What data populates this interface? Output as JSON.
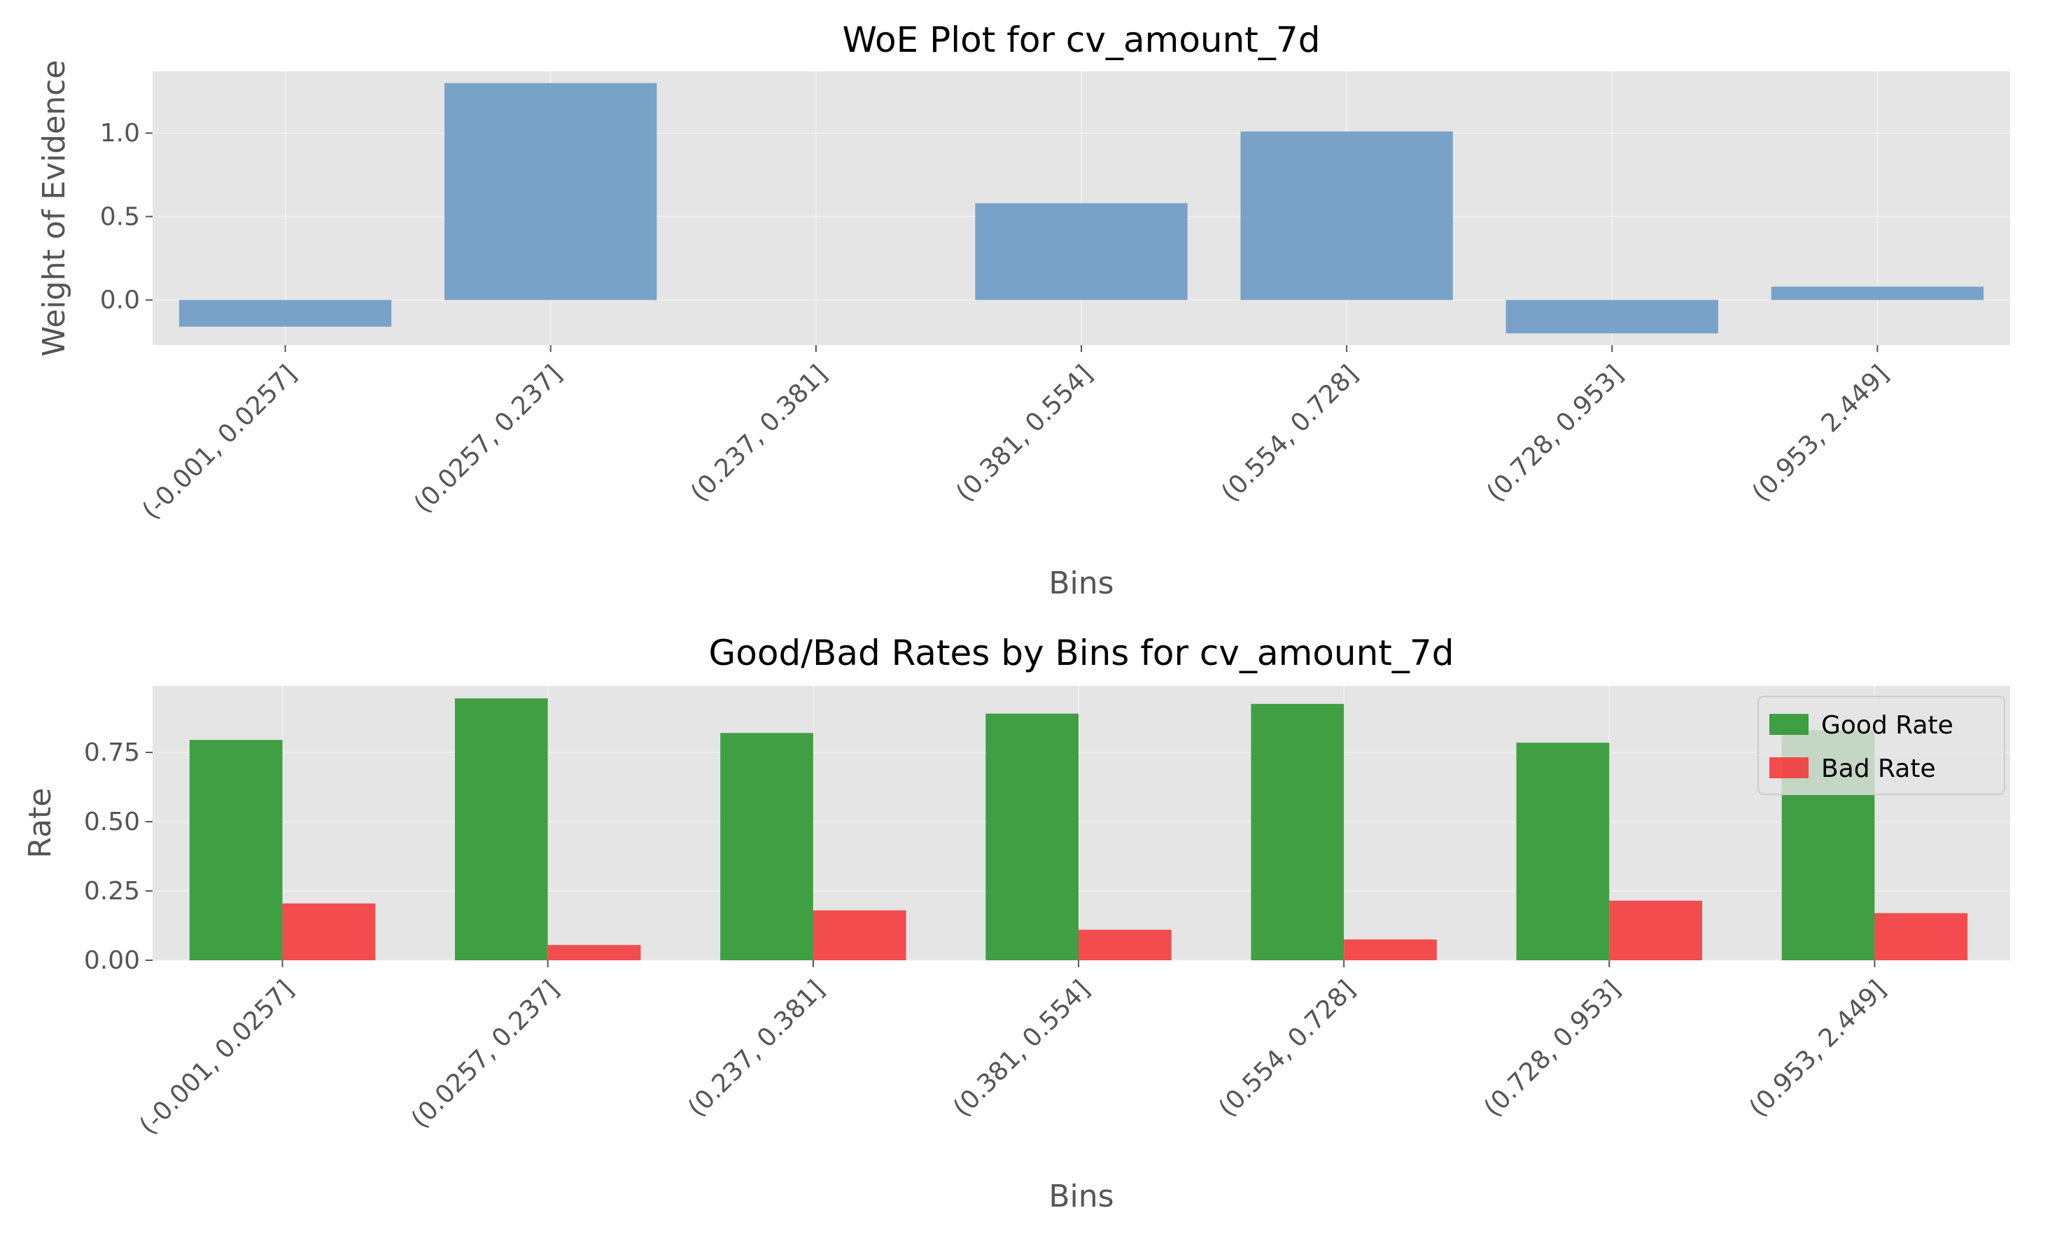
{
  "chart_data": [
    {
      "type": "bar",
      "title": "WoE Plot for cv_amount_7d",
      "xlabel": "Bins",
      "ylabel": "Weight of Evidence",
      "categories": [
        "(-0.001, 0.0257]",
        "(0.0257, 0.237]",
        "(0.237, 0.381]",
        "(0.381, 0.554]",
        "(0.554, 0.728]",
        "(0.728, 0.953]",
        "(0.953, 2.449]"
      ],
      "values": [
        -0.16,
        1.3,
        0.0,
        0.58,
        1.01,
        -0.2,
        0.08
      ],
      "yticks": [
        0.0,
        0.5,
        1.0
      ],
      "ytick_labels": [
        "0.0",
        "0.5",
        "1.0"
      ],
      "ylim": [
        -0.27,
        1.37
      ],
      "grid": true,
      "color": "#6b9ac4"
    },
    {
      "type": "bar",
      "title": "Good/Bad Rates by Bins for cv_amount_7d",
      "xlabel": "Bins",
      "ylabel": "Rate",
      "categories": [
        "(-0.001, 0.0257]",
        "(0.0257, 0.237]",
        "(0.237, 0.381]",
        "(0.381, 0.554]",
        "(0.554, 0.728]",
        "(0.728, 0.953]",
        "(0.953, 2.449]"
      ],
      "series": [
        {
          "name": "Good Rate",
          "color": "#2e9631",
          "values": [
            0.795,
            0.945,
            0.82,
            0.89,
            0.925,
            0.785,
            0.83
          ]
        },
        {
          "name": "Bad Rate",
          "color": "#f43b3d",
          "values": [
            0.205,
            0.055,
            0.18,
            0.11,
            0.075,
            0.215,
            0.17
          ]
        }
      ],
      "yticks": [
        0.0,
        0.25,
        0.5,
        0.75
      ],
      "ytick_labels": [
        "0.00",
        "0.25",
        "0.50",
        "0.75"
      ],
      "ylim": [
        0,
        0.99
      ],
      "grid": true,
      "legend": "top-right"
    }
  ]
}
